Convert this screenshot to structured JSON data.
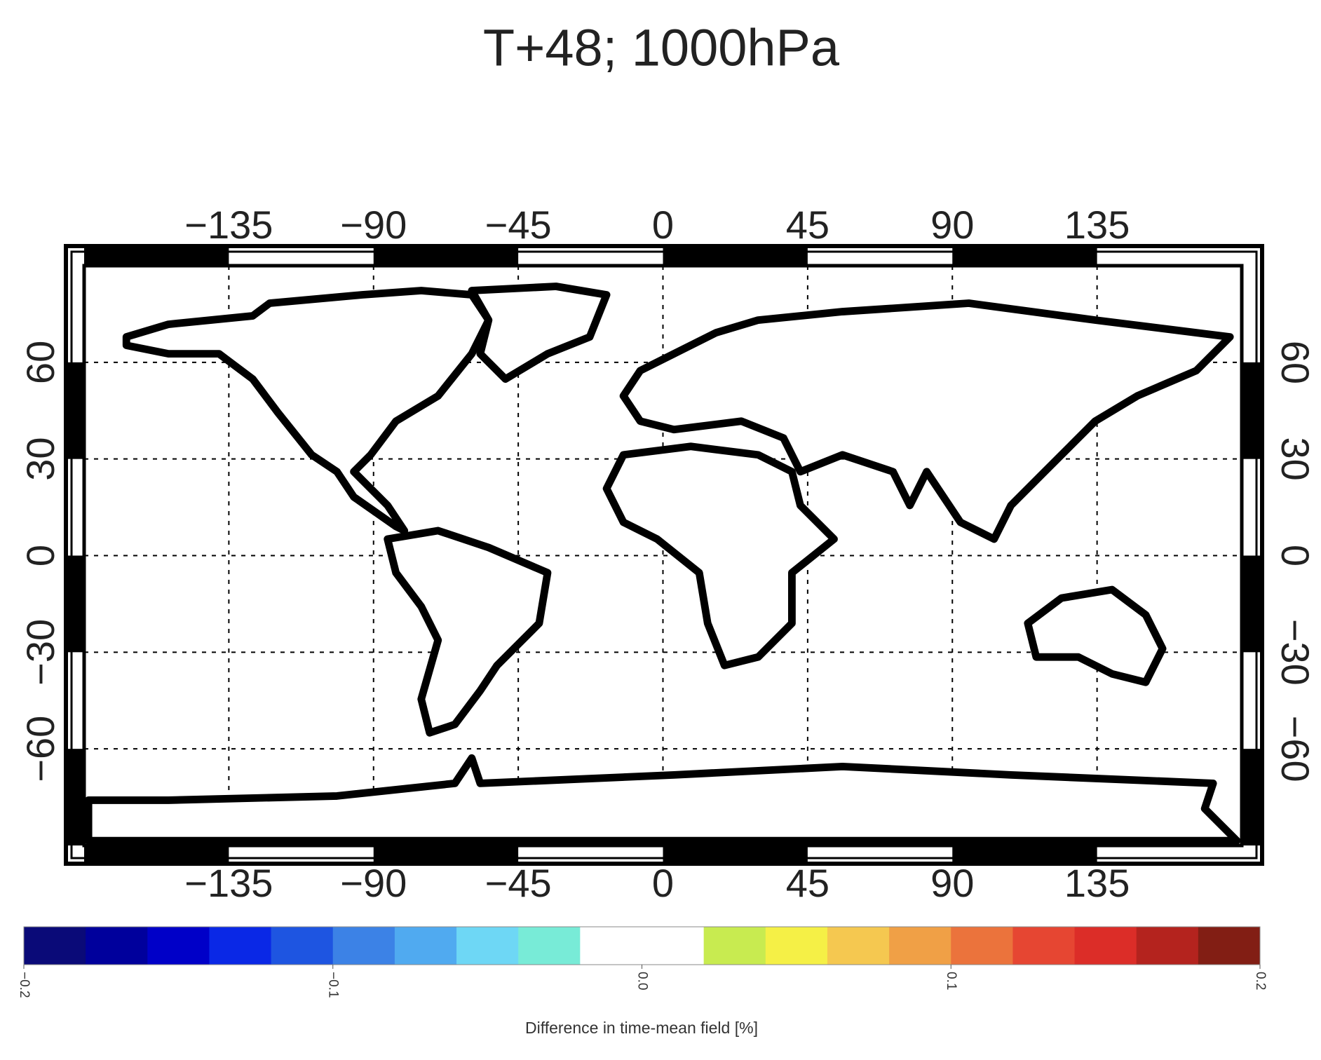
{
  "title": "T+48; 1000hPa",
  "map": {
    "xlim": [
      -180,
      180
    ],
    "ylim": [
      -90,
      90
    ],
    "xticks": [
      {
        "value": -135,
        "label": "−135"
      },
      {
        "value": -90,
        "label": "−90"
      },
      {
        "value": -45,
        "label": "−45"
      },
      0,
      45,
      90,
      135
    ],
    "yticks": [
      {
        "value": -60,
        "label": "−60"
      },
      {
        "value": -30,
        "label": "−30"
      },
      0,
      30,
      60
    ],
    "grid": true
  },
  "colorbar": {
    "label": "Difference in time-mean field [%]",
    "lim": [
      -0.2,
      0.2
    ],
    "ticks": [
      {
        "value": -0.2,
        "label": "−0.2"
      },
      {
        "value": -0.1,
        "label": "−0.1"
      },
      {
        "value": 0,
        "label": "0.0"
      },
      0.1,
      0.2
    ],
    "colors": [
      "#0a0a78",
      "#00009c",
      "#0000c8",
      "#0a28e6",
      "#1e55e1",
      "#3c82e6",
      "#50aaf0",
      "#6ed7f5",
      "#78ebd7",
      "#ffffff",
      "#ffffff",
      "#c8eb50",
      "#f5f046",
      "#f5c850",
      "#f0a046",
      "#eb733c",
      "#e64632",
      "#dc2d28",
      "#b4231e",
      "#821e14"
    ]
  }
}
